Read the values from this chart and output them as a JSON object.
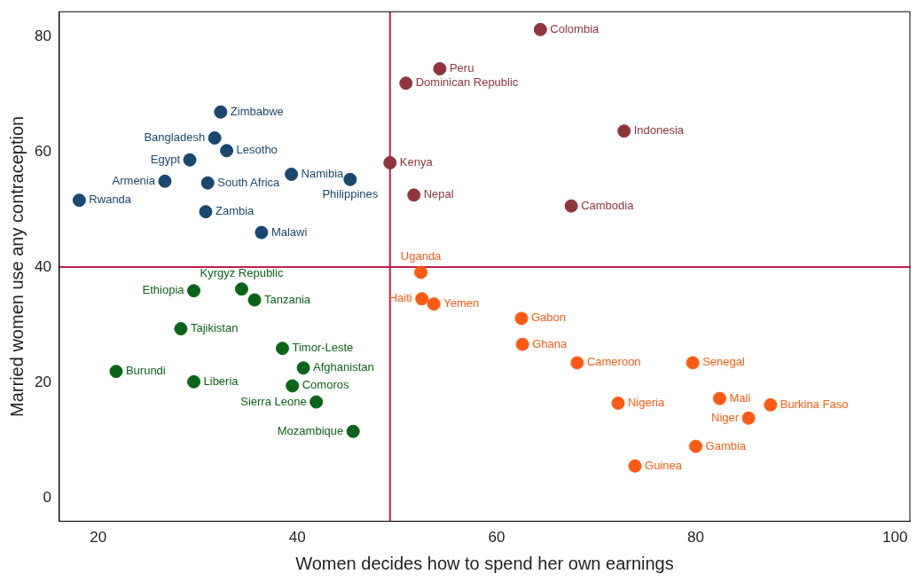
{
  "chart_data": {
    "type": "scatter",
    "xlabel": "Women decides how to spend her own earnings",
    "ylabel": "Married women use any contraception",
    "xlim": [
      16.1,
      101.5
    ],
    "ylim": [
      -4.1,
      84.3
    ],
    "xticks": [
      20,
      40,
      60,
      80,
      100
    ],
    "yticks": [
      0,
      20,
      40,
      60,
      80
    ],
    "grid": false,
    "legend": false,
    "marker": "circle",
    "series": [
      {
        "color": "#1a476f",
        "x": [
          32.3,
          31.7,
          32.9,
          29.2,
          26.7,
          31.0,
          39.4,
          45.3,
          18.1,
          30.8,
          36.4
        ],
        "values": [
          66.9,
          62.4,
          60.2,
          58.6,
          54.9,
          54.6,
          56.1,
          55.2,
          51.6,
          49.6,
          46.0
        ]
      },
      {
        "color": "#90353b",
        "x": [
          64.4,
          54.3,
          50.9,
          72.8,
          49.3,
          51.7,
          67.5
        ],
        "values": [
          81.2,
          74.4,
          71.9,
          63.6,
          58.1,
          52.5,
          50.6
        ]
      },
      {
        "color": "#0b6418",
        "x": [
          29.6,
          34.4,
          35.7,
          28.3,
          38.5,
          21.8,
          29.6,
          40.6,
          39.5,
          41.9,
          45.6
        ],
        "values": [
          35.9,
          36.2,
          34.3,
          29.3,
          25.9,
          21.9,
          20.1,
          22.5,
          19.4,
          16.6,
          11.5
        ]
      },
      {
        "color": "#ff5a14",
        "x": [
          52.4,
          52.5,
          53.7,
          62.5,
          62.6,
          68.1,
          79.7,
          72.2,
          82.4,
          87.5,
          85.3,
          80.0,
          73.9
        ],
        "values": [
          39.1,
          34.5,
          33.6,
          31.1,
          26.6,
          23.4,
          23.4,
          16.4,
          17.2,
          16.1,
          13.8,
          8.9,
          5.5
        ]
      }
    ],
    "ref_lines": [
      {
        "axis": "x",
        "value": 49.3,
        "color": "#c0204a"
      },
      {
        "axis": "y",
        "value": 40,
        "color": "#c0204a"
      }
    ],
    "annotations": [
      {
        "text": "Zimbabwe",
        "x": 32.3,
        "y": 66.9
      },
      {
        "text": "Bangladesh",
        "x": 31.7,
        "y": 62.4
      },
      {
        "text": "Lesotho",
        "x": 32.9,
        "y": 60.2
      },
      {
        "text": "Egypt",
        "x": 29.2,
        "y": 58.6
      },
      {
        "text": "Armenia",
        "x": 26.7,
        "y": 54.9
      },
      {
        "text": "South Africa",
        "x": 31.0,
        "y": 54.6
      },
      {
        "text": "Namibia",
        "x": 39.4,
        "y": 56.1
      },
      {
        "text": "Philippines",
        "x": 45.3,
        "y": 55.2
      },
      {
        "text": "Rwanda",
        "x": 18.1,
        "y": 51.6
      },
      {
        "text": "Zambia",
        "x": 30.8,
        "y": 49.6
      },
      {
        "text": "Malawi",
        "x": 36.4,
        "y": 46.0
      },
      {
        "text": "Colombia",
        "x": 64.4,
        "y": 81.2
      },
      {
        "text": "Peru",
        "x": 54.3,
        "y": 74.4
      },
      {
        "text": "Dominican Republic",
        "x": 50.9,
        "y": 71.9
      },
      {
        "text": "Indonesia",
        "x": 72.8,
        "y": 63.6
      },
      {
        "text": "Kenya",
        "x": 49.3,
        "y": 58.1
      },
      {
        "text": "Nepal",
        "x": 51.7,
        "y": 52.5
      },
      {
        "text": "Cambodia",
        "x": 67.5,
        "y": 50.6
      },
      {
        "text": "Ethiopia",
        "x": 29.6,
        "y": 35.9
      },
      {
        "text": "Kyrgyz Republic",
        "x": 34.4,
        "y": 36.2
      },
      {
        "text": "Tanzania",
        "x": 35.7,
        "y": 34.3
      },
      {
        "text": "Tajikistan",
        "x": 28.3,
        "y": 29.3
      },
      {
        "text": "Timor-Leste",
        "x": 38.5,
        "y": 25.9
      },
      {
        "text": "Burundi",
        "x": 21.8,
        "y": 21.9
      },
      {
        "text": "Liberia",
        "x": 29.6,
        "y": 20.1
      },
      {
        "text": "Afghanistan",
        "x": 40.6,
        "y": 22.5
      },
      {
        "text": "Comoros",
        "x": 39.5,
        "y": 19.4
      },
      {
        "text": "Sierra Leone",
        "x": 41.9,
        "y": 16.6
      },
      {
        "text": "Mozambique",
        "x": 45.6,
        "y": 11.5
      },
      {
        "text": "Uganda",
        "x": 52.4,
        "y": 39.1
      },
      {
        "text": "Haiti",
        "x": 52.5,
        "y": 34.5
      },
      {
        "text": "Yemen",
        "x": 53.7,
        "y": 33.6
      },
      {
        "text": "Gabon",
        "x": 62.5,
        "y": 31.1
      },
      {
        "text": "Ghana",
        "x": 62.6,
        "y": 26.6
      },
      {
        "text": "Cameroon",
        "x": 68.1,
        "y": 23.4
      },
      {
        "text": "Senegal",
        "x": 79.7,
        "y": 23.4
      },
      {
        "text": "Nigeria",
        "x": 72.2,
        "y": 16.4
      },
      {
        "text": "Mali",
        "x": 82.4,
        "y": 17.2
      },
      {
        "text": "Burkina Faso",
        "x": 87.5,
        "y": 16.1
      },
      {
        "text": "Niger",
        "x": 85.3,
        "y": 13.8
      },
      {
        "text": "Gambia",
        "x": 80.0,
        "y": 8.9
      },
      {
        "text": "Guinea",
        "x": 73.9,
        "y": 5.5
      }
    ]
  }
}
